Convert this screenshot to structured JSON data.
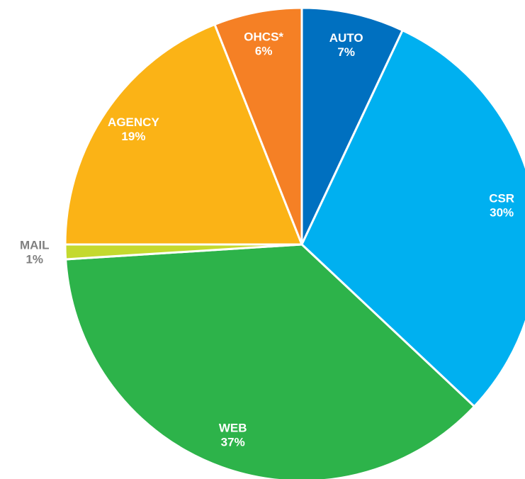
{
  "chart_data": {
    "type": "pie",
    "categories": [
      "AUTO",
      "CSR",
      "WEB",
      "MAIL",
      "AGENCY",
      "OHCS*"
    ],
    "values": [
      7,
      30,
      37,
      1,
      19,
      6
    ],
    "value_labels": [
      "7%",
      "30%",
      "37%",
      "1%",
      "19%",
      "6%"
    ],
    "colors": [
      "#0070c0",
      "#00b0f0",
      "#2db34a",
      "#c4d92e",
      "#fbb316",
      "#f58025"
    ]
  }
}
